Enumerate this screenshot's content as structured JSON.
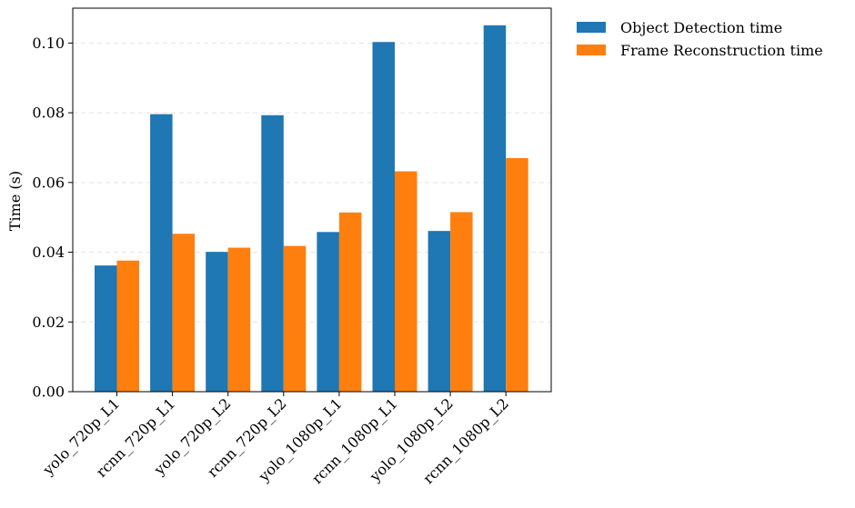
{
  "chart_data": {
    "type": "bar",
    "title": "",
    "xlabel": "",
    "ylabel": "Time (s)",
    "ylim": [
      0,
      0.11
    ],
    "yticks": [
      "0.00",
      "0.02",
      "0.04",
      "0.06",
      "0.08",
      "0.10"
    ],
    "ytick_values": [
      0,
      0.02,
      0.04,
      0.06,
      0.08,
      0.1
    ],
    "grid": true,
    "legend_position": "outside-top-right",
    "categories": [
      "yolo_720p_L1",
      "rcnn_720p_L1",
      "yolo_720p_L2",
      "rcnn_720p_L2",
      "yolo_1080p_L1",
      "rcnn_1080p_L1",
      "yolo_1080p_L2",
      "rcnn_1080p_L2"
    ],
    "series": [
      {
        "name": "Object Detection time",
        "color": "#1f77b4",
        "values": [
          0.0362,
          0.0796,
          0.0401,
          0.0793,
          0.0458,
          0.1003,
          0.0461,
          0.1051
        ]
      },
      {
        "name": "Frame Reconstruction time",
        "color": "#ff7f0e",
        "values": [
          0.0376,
          0.0453,
          0.0413,
          0.0418,
          0.0514,
          0.0632,
          0.0515,
          0.067
        ]
      }
    ]
  }
}
